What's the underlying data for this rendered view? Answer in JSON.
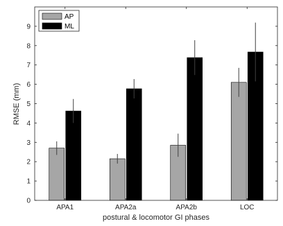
{
  "chart_data": {
    "type": "bar",
    "categories": [
      "APA1",
      "APA2a",
      "APA2b",
      "LOC"
    ],
    "series": [
      {
        "name": "AP",
        "values": [
          2.7,
          2.15,
          2.85,
          6.1
        ],
        "errors": [
          0.35,
          0.25,
          0.6,
          0.75
        ],
        "color": "#a6a6a6"
      },
      {
        "name": "ML",
        "values": [
          4.62,
          5.77,
          7.38,
          7.67
        ],
        "errors": [
          0.62,
          0.5,
          0.9,
          1.52
        ],
        "color": "#000000"
      }
    ],
    "xlabel": "postural & locomotor GI phases",
    "ylabel": "RMSE (mm)",
    "ylim": [
      0,
      10
    ],
    "yticks": [
      0,
      1,
      2,
      3,
      4,
      5,
      6,
      7,
      8,
      9
    ],
    "legend_position": "top-left",
    "grid": false
  }
}
